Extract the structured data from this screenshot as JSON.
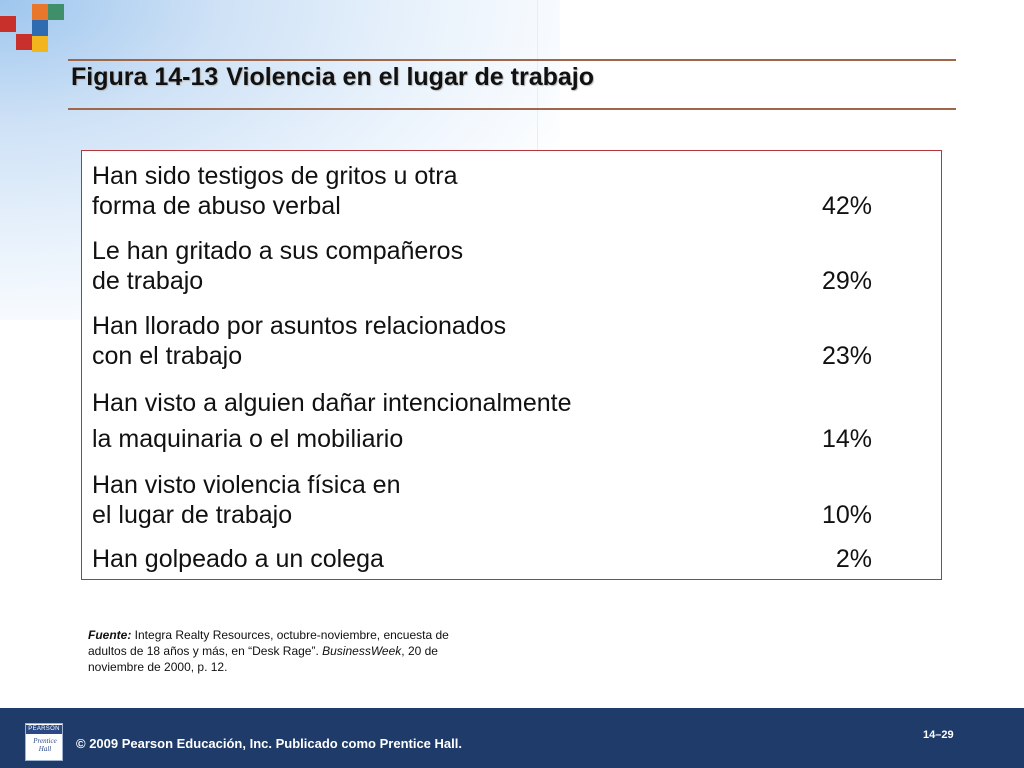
{
  "slide": {
    "figure_number": "Figura 14-13",
    "title": "Violencia en el lugar de trabajo"
  },
  "table": {
    "rows": [
      {
        "label": "Han sido testigos de gritos u otra\nforma de abuso verbal",
        "value": "42%"
      },
      {
        "label": "Le han gritado a sus compañeros\nde trabajo",
        "value": "29%"
      },
      {
        "label": "Han llorado por asuntos relacionados\ncon el trabajo",
        "value": "23%"
      },
      {
        "label": "Han visto a alguien dañar intencionalmente\nla maquinaria o el mobiliario",
        "value": "14%"
      },
      {
        "label": "Han visto violencia física en\nel lugar de trabajo",
        "value": "10%"
      },
      {
        "label": "Han golpeado a un colega",
        "value": "2%"
      }
    ]
  },
  "source": {
    "label": "Fuente:",
    "text_before": " Integra Realty Resources, octubre-noviembre, encuesta de adultos de 18 años y más, en “Desk Rage”. ",
    "magazine": "BusinessWeek",
    "text_after": ", 20 de noviembre de 2000, p. 12."
  },
  "footer": {
    "logo_brand": "PEARSON",
    "logo_imprint": "Prentice\nHall",
    "copyright": "© 2009 Pearson Educación, Inc. Publicado como Prentice Hall.",
    "page_number": "14–29"
  },
  "colors": {
    "footer_bg": "#1f3b6a",
    "table_border": "#b5353d",
    "rule": "#a0664a",
    "deco_orange": "#e8762b",
    "deco_red": "#c8302c",
    "deco_yellow": "#f2b51d",
    "deco_green": "#3f8f6a",
    "deco_blue": "#2e6bb0"
  }
}
